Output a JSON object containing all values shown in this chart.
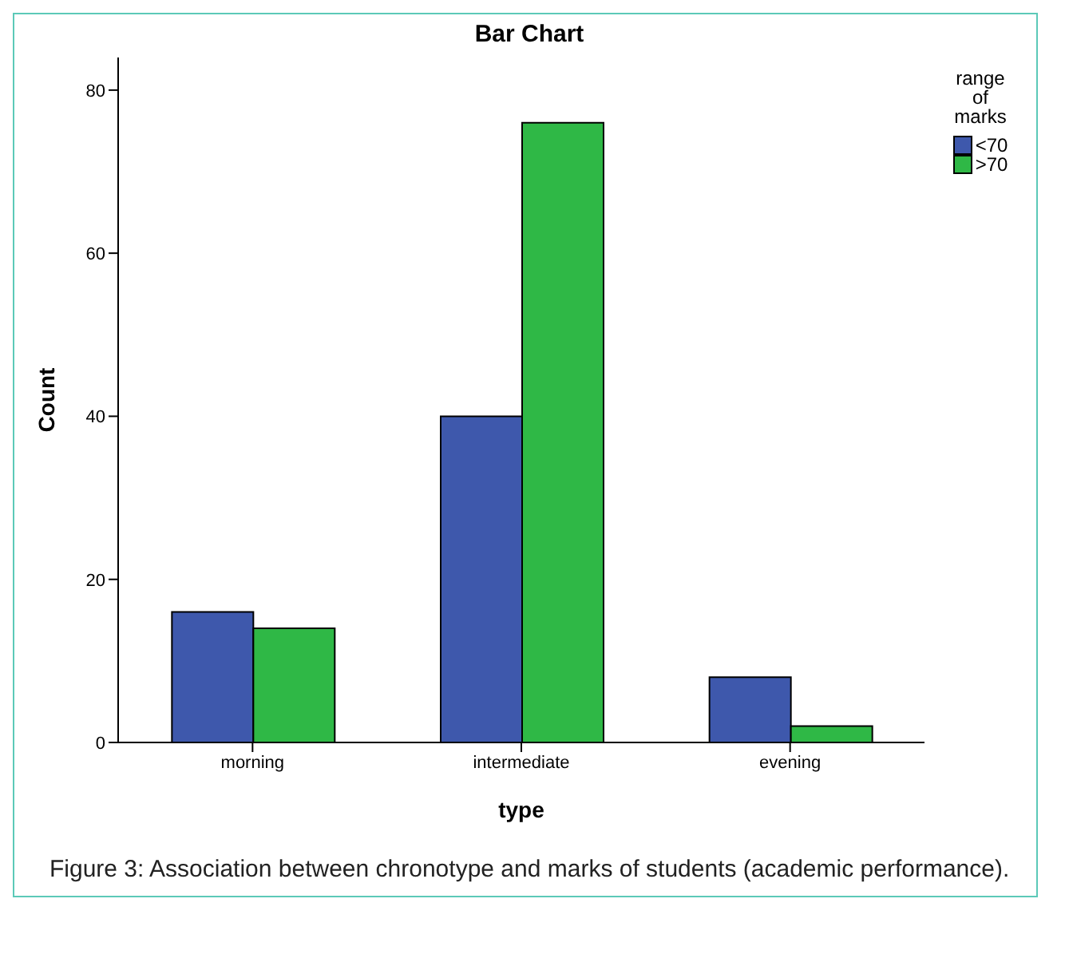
{
  "chart_data": {
    "type": "bar",
    "title": "Bar Chart",
    "xlabel": "type",
    "ylabel": "Count",
    "legend_title": "range of marks",
    "categories": [
      "morning",
      "intermediate",
      "evening"
    ],
    "series": [
      {
        "name": "<70",
        "color": "#3e58ac",
        "values": [
          16,
          40,
          8
        ]
      },
      {
        "name": ">70",
        "color": "#2fb846",
        "values": [
          14,
          76,
          2
        ]
      }
    ],
    "ylim": [
      0,
      84
    ],
    "yticks": [
      0,
      20,
      40,
      60,
      80
    ],
    "grid": false,
    "legend": "right",
    "annotations": [
      "Figure 3: Association between chronotype and marks of students (academic performance)."
    ]
  }
}
